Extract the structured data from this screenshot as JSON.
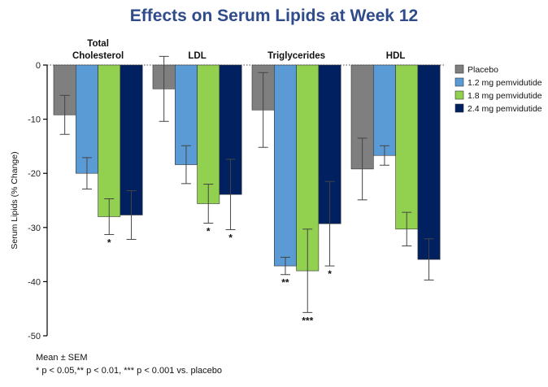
{
  "title": "Effects on Serum Lipids at Week 12",
  "chart_data": {
    "type": "bar",
    "ylabel": "Serum Lipids (% Change)",
    "ylim": [
      -50,
      0
    ],
    "yticks": [
      0,
      -10,
      -20,
      -30,
      -40,
      -50
    ],
    "categories": [
      "Total Cholesterol",
      "LDL",
      "Triglycerides",
      "HDL"
    ],
    "category_lines": [
      [
        "Total",
        "Cholesterol"
      ],
      [
        "LDL"
      ],
      [
        "Triglycerides"
      ],
      [
        "HDL"
      ]
    ],
    "series": [
      {
        "name": "Placebo",
        "color": "#7f7f7f",
        "values": [
          -9.2,
          -4.4,
          -8.3,
          -19.2
        ],
        "errors": [
          3.6,
          6.0,
          6.9,
          5.7
        ],
        "significance": [
          "",
          "",
          "",
          ""
        ]
      },
      {
        "name": "1.2 mg pemvidutide",
        "color": "#5b9bd5",
        "values": [
          -20.0,
          -18.4,
          -37.1,
          -16.7
        ],
        "errors": [
          2.9,
          3.5,
          1.6,
          1.8
        ],
        "significance": [
          "",
          "",
          "**",
          ""
        ]
      },
      {
        "name": "1.8 mg pemvidutide",
        "color": "#92d050",
        "values": [
          -28.0,
          -25.6,
          -38.0,
          -30.3
        ],
        "errors": [
          3.3,
          3.6,
          7.7,
          3.1
        ],
        "significance": [
          "*",
          "*",
          "***",
          ""
        ]
      },
      {
        "name": "2.4 mg pemvidutide",
        "color": "#002060",
        "values": [
          -27.7,
          -23.9,
          -29.3,
          -35.9
        ],
        "errors": [
          4.5,
          6.5,
          7.8,
          3.8
        ],
        "significance": [
          "",
          "*",
          "*",
          ""
        ]
      }
    ]
  },
  "notes": {
    "line1": "Mean ± SEM",
    "line2": "* p < 0.05,** p < 0.01, *** p < 0.001 vs. placebo"
  }
}
